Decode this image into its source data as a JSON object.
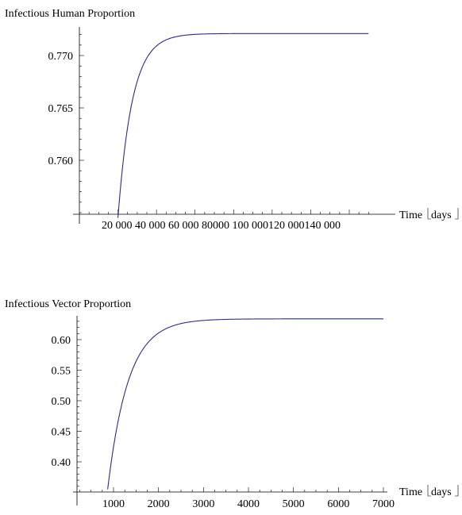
{
  "chart_data": [
    {
      "type": "line",
      "title": "",
      "ylabel": "Infectious Human Proportion",
      "xlabel_main": "Time",
      "xlabel_unit": "days",
      "xlim": [
        0,
        152000
      ],
      "ylim": [
        0.7545,
        0.7725
      ],
      "x_axis_at_y": 0.7545,
      "x_ticks": [
        20000,
        40000,
        60000,
        80000,
        100000,
        120000,
        140000
      ],
      "x_tick_labels": [
        "20 000",
        "40 000",
        "60 000",
        "80000",
        "100 000",
        "120 000",
        "140 000"
      ],
      "x_tick_labels_joined": "20 000  40 000  60 000  80000  100 000120 000140 000",
      "y_ticks": [
        0.76,
        0.765,
        0.77
      ],
      "y_tick_labels": [
        "0.760",
        "0.765",
        "0.770"
      ],
      "curve": {
        "start_x": 20000,
        "start_y": 0.7545,
        "asymptote": 0.7721,
        "rate": 0.000135
      },
      "x_end": 150000,
      "line_color": "#2c2c8c"
    },
    {
      "type": "line",
      "title": "",
      "ylabel": "Infectious Vector Proportion",
      "xlabel_main": "Time",
      "xlabel_unit": "days",
      "xlim": [
        0,
        7100
      ],
      "ylim": [
        0.355,
        0.645
      ],
      "x_axis_at_y": 0.355,
      "x_ticks": [
        1000,
        2000,
        3000,
        4000,
        5000,
        6000,
        7000
      ],
      "x_tick_labels": [
        "1000",
        "2000",
        "3000",
        "4000",
        "5000",
        "6000",
        "7000"
      ],
      "y_ticks": [
        0.4,
        0.45,
        0.5,
        0.55,
        0.6
      ],
      "y_tick_labels": [
        "0.40",
        "0.45",
        "0.50",
        "0.55",
        "0.60"
      ],
      "curve": {
        "start_x": 870,
        "start_y": 0.355,
        "asymptote": 0.634,
        "rate": 0.0022
      },
      "x_end": 7000,
      "line_color": "#2c2c8c"
    }
  ]
}
